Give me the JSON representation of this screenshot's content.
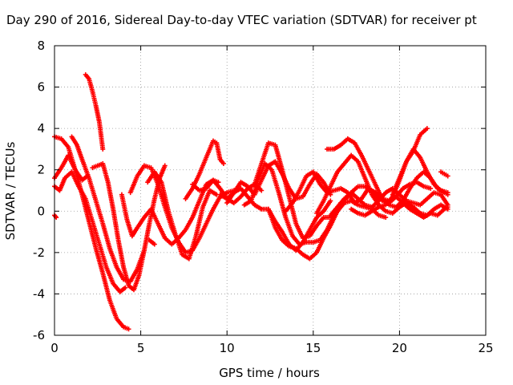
{
  "chart_data": {
    "type": "scatter",
    "title": "Day 290 of 2016, Sidereal Day-to-day VTEC variation (SDTVAR) for receiver pt",
    "xlabel": "GPS time / hours",
    "ylabel": "SDTVAR / TECUs",
    "xlim": [
      0,
      25
    ],
    "ylim": [
      -6,
      8
    ],
    "xticks": [
      0,
      5,
      10,
      15,
      20,
      25
    ],
    "yticks": [
      -6,
      -4,
      -2,
      0,
      2,
      4,
      6,
      8
    ],
    "grid": true,
    "marker": "+",
    "color": "#ff0000",
    "series": [
      {
        "x": [
          0.0,
          0.4,
          0.8,
          1.2,
          1.6,
          1.9
        ],
        "y": [
          1.6,
          2.1,
          2.7,
          2.0,
          1.5,
          1.7
        ]
      },
      {
        "x": [
          0.0,
          0.4,
          0.8,
          1.2,
          1.6,
          2.0,
          2.4,
          2.8,
          3.2,
          3.6,
          4.0,
          4.3
        ],
        "y": [
          3.6,
          3.5,
          3.1,
          2.0,
          0.8,
          -0.5,
          -1.8,
          -3.0,
          -4.3,
          -5.2,
          -5.6,
          -5.7
        ]
      },
      {
        "x": [
          0.0,
          0.1
        ],
        "y": [
          -0.2,
          -0.3
        ]
      },
      {
        "x": [
          0.0,
          0.3,
          0.6,
          1.0,
          1.4,
          1.8,
          2.2,
          2.6,
          3.0,
          3.4,
          3.8,
          4.1
        ],
        "y": [
          1.2,
          1.0,
          1.6,
          1.9,
          1.2,
          0.6,
          -0.5,
          -1.6,
          -2.7,
          -3.5,
          -3.9,
          -3.7
        ]
      },
      {
        "x": [
          1.0,
          1.3,
          1.6,
          2.0,
          2.4,
          2.8,
          3.2,
          3.6,
          4.0,
          4.4,
          4.8,
          5.2
        ],
        "y": [
          3.6,
          3.2,
          2.5,
          1.6,
          0.5,
          -0.6,
          -1.8,
          -2.7,
          -3.3,
          -3.4,
          -2.8,
          -1.9
        ]
      },
      {
        "x": [
          1.8,
          2.0,
          2.2,
          2.4,
          2.6,
          2.8
        ],
        "y": [
          6.6,
          6.4,
          5.8,
          5.1,
          4.3,
          3.0
        ]
      },
      {
        "x": [
          2.2,
          2.5,
          2.8,
          3.1,
          3.4,
          3.7,
          4.0,
          4.3,
          4.6,
          4.9,
          5.2,
          5.5,
          5.8,
          6.1,
          6.4
        ],
        "y": [
          2.1,
          2.2,
          2.3,
          1.4,
          0.1,
          -1.4,
          -2.7,
          -3.6,
          -3.8,
          -3.1,
          -1.9,
          -0.6,
          0.6,
          1.6,
          2.2
        ]
      },
      {
        "x": [
          3.9,
          4.2,
          4.5,
          4.8,
          5.2,
          5.6,
          6.0,
          6.4,
          6.8,
          7.2,
          7.6,
          8.0,
          8.4,
          8.8,
          9.2,
          9.5
        ],
        "y": [
          0.8,
          -0.4,
          -1.2,
          -0.8,
          -0.3,
          0.1,
          -0.6,
          -1.3,
          -1.6,
          -1.3,
          -0.9,
          -0.3,
          0.5,
          1.3,
          1.5,
          1.4
        ]
      },
      {
        "x": [
          4.4,
          4.8,
          5.2,
          5.6,
          6.0,
          6.4,
          6.8,
          7.2,
          7.6,
          8.0,
          8.4,
          8.8,
          9.2,
          9.6,
          10.0,
          10.4
        ],
        "y": [
          0.9,
          1.7,
          2.2,
          2.1,
          1.3,
          0.2,
          -0.8,
          -1.5,
          -2.0,
          -1.9,
          -1.3,
          -0.6,
          0.1,
          0.7,
          0.9,
          1.0
        ]
      },
      {
        "x": [
          5.4,
          5.8,
          6.2,
          6.6,
          7.0,
          7.4,
          7.8,
          8.2,
          8.6,
          9.0,
          9.4
        ],
        "y": [
          1.4,
          1.9,
          1.4,
          0.0,
          -1.1,
          -2.1,
          -2.3,
          -1.2,
          0.2,
          1.0,
          0.8
        ]
      },
      {
        "x": [
          5.5,
          5.8
        ],
        "y": [
          -1.4,
          -1.6
        ]
      },
      {
        "x": [
          7.6,
          8.0,
          8.4,
          8.8,
          9.0,
          9.2,
          9.4,
          9.6,
          9.8
        ],
        "y": [
          0.6,
          1.1,
          1.8,
          2.6,
          3.0,
          3.4,
          3.3,
          2.5,
          2.3
        ]
      },
      {
        "x": [
          8.0,
          8.4,
          8.8,
          9.2,
          9.6,
          10.0,
          10.4,
          10.8,
          11.2,
          11.6,
          12.0
        ],
        "y": [
          1.3,
          1.0,
          1.1,
          1.5,
          1.1,
          0.6,
          0.4,
          0.7,
          1.1,
          1.3,
          1.0
        ]
      },
      {
        "x": [
          9.6,
          10.0,
          10.4,
          10.8,
          11.2,
          11.6,
          12.0,
          12.4,
          12.8,
          13.2,
          13.6,
          14.0,
          14.4,
          14.8,
          15.2,
          15.6,
          16.0
        ],
        "y": [
          0.8,
          0.6,
          0.9,
          1.1,
          0.7,
          0.3,
          0.1,
          0.1,
          -0.5,
          -1.0,
          -1.6,
          -1.9,
          -1.5,
          -0.9,
          -0.3,
          0.0,
          0.5
        ]
      },
      {
        "x": [
          10.0,
          10.4,
          10.8,
          11.2,
          11.6,
          12.0,
          12.4,
          12.8,
          13.2,
          13.6,
          14.0,
          14.4,
          14.8,
          15.2,
          15.6,
          16.0
        ],
        "y": [
          0.4,
          0.9,
          1.4,
          1.2,
          0.8,
          1.5,
          2.2,
          2.4,
          1.8,
          1.1,
          0.6,
          0.7,
          1.3,
          1.8,
          1.4,
          0.8
        ]
      },
      {
        "x": [
          11.0,
          11.4,
          11.8,
          12.2,
          12.6,
          13.0,
          13.4,
          13.8,
          14.2,
          14.6,
          15.0,
          15.4,
          15.8,
          16.2,
          16.6,
          17.0
        ],
        "y": [
          0.3,
          0.5,
          1.5,
          2.3,
          2.0,
          0.9,
          -0.3,
          -1.2,
          -1.6,
          -1.5,
          -1.5,
          -1.4,
          -0.9,
          -0.2,
          0.4,
          0.7
        ]
      },
      {
        "x": [
          11.6,
          12.0,
          12.4,
          12.8,
          13.2,
          13.6,
          14.0,
          14.4,
          14.8,
          15.2,
          15.6,
          16.0,
          16.4,
          16.8,
          17.2,
          17.6,
          18.0,
          18.4,
          18.8,
          19.2
        ],
        "y": [
          1.3,
          2.3,
          3.3,
          3.2,
          2.0,
          0.7,
          -0.6,
          -1.3,
          -1.2,
          -0.7,
          -0.3,
          -0.3,
          0.0,
          0.4,
          0.5,
          0.3,
          0.2,
          0.1,
          -0.2,
          -0.3
        ]
      },
      {
        "x": [
          12.4,
          12.8,
          13.2,
          13.6,
          14.0,
          14.4,
          14.8,
          15.2,
          15.6,
          16.0,
          16.4,
          16.8,
          17.2,
          17.6,
          18.0,
          18.4,
          18.8
        ],
        "y": [
          0.1,
          -0.8,
          -1.4,
          -1.7,
          -1.8,
          -2.1,
          -2.3,
          -2.0,
          -1.3,
          -0.7,
          0.0,
          0.5,
          0.9,
          1.2,
          1.2,
          0.9,
          0.6
        ]
      },
      {
        "x": [
          13.4,
          13.8,
          14.2,
          14.6,
          15.0,
          15.4,
          15.8,
          16.2,
          16.6,
          17.0,
          17.4,
          17.8,
          18.2,
          18.6,
          19.0,
          19.4,
          19.8,
          20.2,
          20.6,
          21.0,
          21.4,
          21.8
        ],
        "y": [
          0.0,
          0.4,
          1.0,
          1.7,
          1.9,
          1.3,
          0.9,
          1.0,
          1.1,
          0.9,
          0.4,
          0.6,
          1.1,
          0.9,
          0.5,
          0.4,
          0.7,
          1.1,
          1.3,
          1.4,
          1.2,
          1.1
        ]
      },
      {
        "x": [
          15.2,
          15.6,
          16.0,
          16.4,
          16.8,
          17.2,
          17.6,
          18.0,
          18.4,
          18.8,
          19.2,
          19.6,
          20.0,
          20.4,
          20.8,
          21.2,
          21.6,
          22.0,
          22.4,
          22.8
        ],
        "y": [
          -0.1,
          0.5,
          1.2,
          1.9,
          2.3,
          2.7,
          2.4,
          1.6,
          0.8,
          0.3,
          0.0,
          -0.1,
          0.2,
          0.4,
          0.2,
          -0.1,
          -0.2,
          0.1,
          0.3,
          0.1
        ]
      },
      {
        "x": [
          15.8,
          16.2,
          16.6,
          17.0,
          17.4,
          17.8,
          18.2,
          18.6,
          19.0,
          19.4,
          19.8,
          20.2,
          20.6,
          21.0,
          21.4,
          21.8,
          22.2,
          22.6,
          22.8
        ],
        "y": [
          3.0,
          3.0,
          3.2,
          3.5,
          3.3,
          2.7,
          2.0,
          1.3,
          0.6,
          0.3,
          0.2,
          0.5,
          1.1,
          1.6,
          1.9,
          1.6,
          1.1,
          0.9,
          0.8
        ]
      },
      {
        "x": [
          16.0,
          16.4,
          16.8,
          17.2,
          17.6,
          18.0,
          18.4,
          18.8,
          19.2,
          19.6,
          20.0,
          20.4,
          20.8,
          21.2,
          21.6,
          22.0,
          22.4,
          22.8
        ],
        "y": [
          -0.2,
          0.2,
          0.6,
          0.9,
          0.6,
          0.3,
          0.2,
          0.5,
          0.9,
          1.1,
          0.8,
          0.5,
          0.4,
          0.3,
          0.6,
          0.9,
          0.8,
          0.3
        ]
      },
      {
        "x": [
          17.2,
          17.6,
          18.0,
          18.4,
          18.8,
          19.2,
          19.6,
          20.0,
          20.4,
          20.8,
          21.2,
          21.6,
          22.0,
          22.4,
          22.8
        ],
        "y": [
          0.1,
          -0.1,
          -0.2,
          0.0,
          0.2,
          0.3,
          0.7,
          1.5,
          2.4,
          3.0,
          2.6,
          1.9,
          1.3,
          1.0,
          0.9
        ]
      },
      {
        "x": [
          18.6,
          19.0,
          19.4,
          19.8,
          20.2,
          20.6,
          21.0,
          21.4,
          21.8,
          22.2,
          22.6,
          22.8
        ],
        "y": [
          0.9,
          0.6,
          0.5,
          0.7,
          0.4,
          0.1,
          -0.1,
          -0.3,
          -0.1,
          -0.2,
          0.1,
          0.2
        ]
      },
      {
        "x": [
          19.6,
          20.0,
          20.4,
          20.8,
          21.2,
          21.6
        ],
        "y": [
          0.8,
          1.6,
          2.4,
          2.9,
          3.7,
          4.0
        ]
      },
      {
        "x": [
          22.4,
          22.6,
          22.8
        ],
        "y": [
          1.9,
          1.8,
          1.7
        ]
      }
    ]
  }
}
